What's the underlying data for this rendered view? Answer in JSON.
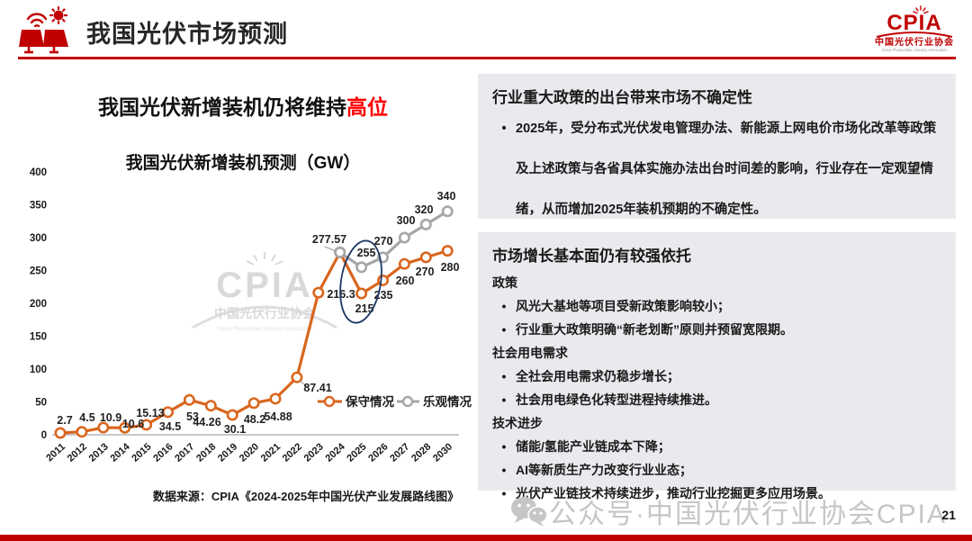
{
  "header": {
    "title": "我国光伏市场预测",
    "logo": {
      "name": "CPIA",
      "org": "中国光伏行业协会",
      "org_en": "China Photovoltaic Industry Association"
    }
  },
  "left": {
    "headline_prefix": "我国光伏新增装机仍将维持",
    "headline_highlight": "高位",
    "chart_title": "我国光伏新增装机预测（GW）",
    "source": "数据来源：CPIA《2024-2025年中国光伏产业发展路线图》"
  },
  "chart_data": {
    "type": "line",
    "title": "我国光伏新增装机预测（GW）",
    "categories": [
      "2011",
      "2012",
      "2013",
      "2014",
      "2015",
      "2016",
      "2017",
      "2018",
      "2019",
      "2020",
      "2021",
      "2022",
      "2023",
      "2024",
      "2025",
      "2026",
      "2027",
      "2028",
      "2030"
    ],
    "series": [
      {
        "name": "保守情况",
        "color": "#D9661F",
        "values": [
          2.7,
          4.5,
          10.9,
          10.6,
          15.13,
          34.5,
          53,
          44.26,
          30.1,
          48.2,
          54.88,
          87.41,
          216.3,
          277.57,
          215,
          235,
          260,
          270,
          280
        ]
      },
      {
        "name": "乐观情况",
        "color": "#A6A6A6",
        "values": [
          null,
          null,
          null,
          null,
          null,
          null,
          null,
          null,
          null,
          null,
          null,
          null,
          null,
          277.57,
          255,
          270,
          300,
          320,
          340
        ]
      }
    ],
    "ylim": [
      0,
      400
    ],
    "ytick_step": 50,
    "grid": false,
    "legend_position": "inside-bottom-right",
    "annotations": {
      "ellipse_highlight_year": "2025",
      "watermark_text": "CPIA",
      "watermark_sub": "中国光伏行业协会",
      "watermark_sub_en": "China Photovoltaic Industry Association"
    }
  },
  "panels": [
    {
      "title": "行业重大政策的出台带来市场不确定性",
      "loose": true,
      "blocks": [
        {
          "type": "bullet",
          "text": "2025年，受分布式光伏发电管理办法、新能源上网电价市场化改革等政策及上述政策与各省具体实施办法出台时间差的影响，行业存在一定观望情绪，从而增加2025年装机预期的不确定性。"
        }
      ]
    },
    {
      "title": "市场增长基本面仍有较强依托",
      "loose": false,
      "blocks": [
        {
          "type": "subhead",
          "text": "政策"
        },
        {
          "type": "bullet",
          "text": "风光大基地等项目受新政策影响较小；"
        },
        {
          "type": "bullet",
          "text": "行业重大政策明确“新老划断”原则并预留宽限期。"
        },
        {
          "type": "subhead",
          "text": "社会用电需求"
        },
        {
          "type": "bullet",
          "text": "全社会用电需求仍稳步增长；"
        },
        {
          "type": "bullet",
          "text": "社会用电绿色化转型进程持续推进。"
        },
        {
          "type": "subhead",
          "text": "技术进步"
        },
        {
          "type": "bullet",
          "text": "储能/氢能产业链成本下降；"
        },
        {
          "type": "bullet",
          "text": "AI等新质生产力改变行业业态；"
        },
        {
          "type": "bullet",
          "text": "光伏产业链技术持续进步，推动行业挖掘更多应用场景。"
        }
      ]
    }
  ],
  "footer": {
    "watermark": "公众号·中国光伏行业协会CPIA",
    "page": "21"
  },
  "colors": {
    "accent_red": "#C00000",
    "highlight_red": "#FF0000",
    "conservative": "#D9661F",
    "optimistic": "#A6A6A6",
    "ellipse": "#1F3864",
    "panel_bg": "#EAEAEE"
  }
}
